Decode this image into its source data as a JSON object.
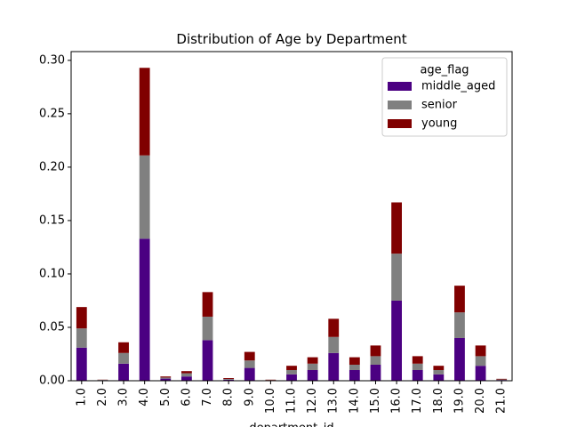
{
  "chart_data": {
    "type": "bar",
    "stacked": true,
    "title": "Distribution of Age by Department",
    "xlabel": "department_id",
    "ylabel": "",
    "categories": [
      "1.0",
      "2.0",
      "3.0",
      "4.0",
      "5.0",
      "6.0",
      "7.0",
      "8.0",
      "9.0",
      "10.0",
      "11.0",
      "12.0",
      "13.0",
      "14.0",
      "15.0",
      "16.0",
      "17.0",
      "18.0",
      "19.0",
      "20.0",
      "21.0"
    ],
    "series": [
      {
        "name": "middle_aged",
        "color": "#4b0082",
        "values": [
          0.031,
          0.0005,
          0.016,
          0.133,
          0.002,
          0.004,
          0.038,
          0.001,
          0.012,
          0.0003,
          0.006,
          0.01,
          0.026,
          0.01,
          0.015,
          0.075,
          0.01,
          0.006,
          0.04,
          0.014,
          0.0007
        ]
      },
      {
        "name": "senior",
        "color": "#808080",
        "values": [
          0.018,
          0.0003,
          0.01,
          0.078,
          0.001,
          0.003,
          0.022,
          0.0007,
          0.007,
          0.0003,
          0.004,
          0.006,
          0.015,
          0.005,
          0.008,
          0.044,
          0.006,
          0.004,
          0.024,
          0.009,
          0.0005
        ]
      },
      {
        "name": "young",
        "color": "#800000",
        "values": [
          0.02,
          0.0002,
          0.01,
          0.082,
          0.001,
          0.002,
          0.023,
          0.0008,
          0.008,
          0.0004,
          0.004,
          0.006,
          0.017,
          0.007,
          0.01,
          0.048,
          0.007,
          0.004,
          0.025,
          0.01,
          0.0006
        ]
      }
    ],
    "ylim": [
      0,
      0.3
    ],
    "yticks": [
      "0.00",
      "0.05",
      "0.10",
      "0.15",
      "0.20",
      "0.25",
      "0.30"
    ],
    "ytick_values": [
      0,
      0.05,
      0.1,
      0.15,
      0.2,
      0.25,
      0.3
    ],
    "grid": false,
    "legend": {
      "title": "age_flag",
      "placement": "upper right"
    }
  }
}
